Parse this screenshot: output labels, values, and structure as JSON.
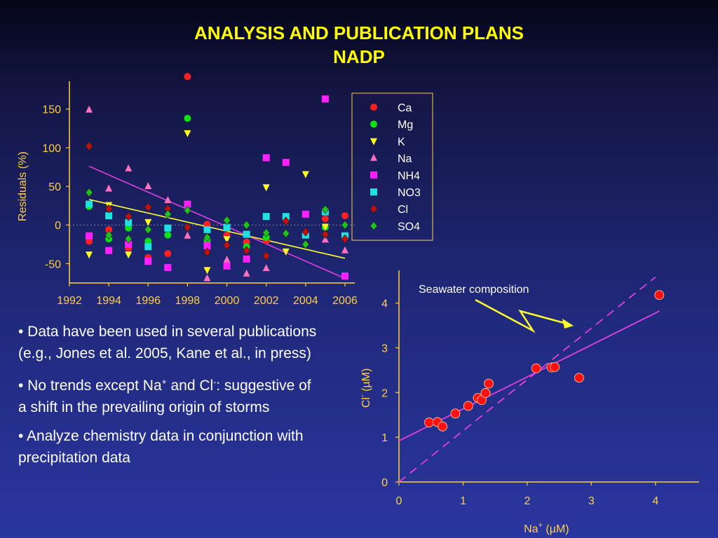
{
  "slide": {
    "title_line1": "ANALYSIS AND PUBLICATION PLANS",
    "title_line2": "NADP",
    "bullets": [
      {
        "text": "•  Data have been used in several publications (e.g., Jones et al. 2005, Kane et al., in press)"
      },
      {
        "pre": "•  No trends except Na",
        "sup1": "+",
        "mid": " and Cl",
        "sup2": "-",
        "post": ": suggestive of a shift in the prevailing origin of storms"
      },
      {
        "text": "•  Analyze chemistry data in conjunction with precipitation data"
      }
    ]
  },
  "colors": {
    "title": "#ffff00",
    "axis_text": "#ffd040",
    "axis_line": "#ffd040",
    "trend_na": "#e040e0",
    "trend_cl": "#ffff30",
    "point_red": "#ff1010"
  },
  "chart_data": [
    {
      "type": "scatter",
      "title": "",
      "xlabel": "",
      "ylabel": "Residuals (%)",
      "xlim": [
        1992,
        2006.5
      ],
      "ylim": [
        -75,
        195
      ],
      "xticks": [
        1992,
        1994,
        1996,
        1998,
        2000,
        2002,
        2004,
        2006
      ],
      "yticks": [
        -50,
        0,
        50,
        100,
        150
      ],
      "legend_position": "top-right",
      "series": [
        {
          "name": "Ca",
          "marker": "circle",
          "color": "#ff2020",
          "x": [
            1993,
            1994,
            1995,
            1996,
            1997,
            1998,
            1999,
            2000,
            2001,
            2002,
            2005,
            2006
          ],
          "y": [
            -21,
            -6,
            -30,
            -42,
            -37,
            192,
            1,
            -13,
            -22,
            -20,
            8,
            12
          ]
        },
        {
          "name": "Mg",
          "marker": "circle",
          "color": "#10e010",
          "x": [
            1993,
            1994,
            1995,
            1996,
            1997,
            1998,
            1999,
            2000,
            2001,
            2002,
            2005
          ],
          "y": [
            24,
            -18,
            -4,
            -21,
            -13,
            138,
            -20,
            -4,
            -28,
            -16,
            -3
          ]
        },
        {
          "name": "K",
          "marker": "tri-down",
          "color": "#ffff20",
          "x": [
            1993,
            1994,
            1995,
            1996,
            1998,
            1999,
            2000,
            2002,
            2003,
            2004,
            2005
          ],
          "y": [
            -38,
            26,
            -38,
            4,
            119,
            -58,
            -18,
            49,
            -34,
            66,
            -2
          ]
        },
        {
          "name": "Na",
          "marker": "tri-up",
          "color": "#ff70c0",
          "x": [
            1993,
            1994,
            1995,
            1996,
            1997,
            1998,
            1999,
            2000,
            2001,
            2002,
            2005,
            2006
          ],
          "y": [
            149,
            47,
            73,
            50,
            32,
            -14,
            -69,
            -45,
            -63,
            -56,
            -19,
            -33
          ]
        },
        {
          "name": "NH4",
          "marker": "square",
          "color": "#ff20ff",
          "x": [
            1993,
            1994,
            1995,
            1996,
            1997,
            1998,
            1999,
            2000,
            2001,
            2002,
            2003,
            2004,
            2005,
            2006
          ],
          "y": [
            -14,
            -33,
            -25,
            -47,
            -55,
            27,
            -27,
            -53,
            -44,
            87,
            81,
            14,
            163,
            -66
          ]
        },
        {
          "name": "NO3",
          "marker": "square",
          "color": "#20e0e0",
          "x": [
            1993,
            1994,
            1995,
            1996,
            1997,
            1999,
            2000,
            2001,
            2002,
            2003,
            2004,
            2005,
            2006
          ],
          "y": [
            27,
            12,
            3,
            -28,
            -4,
            -6,
            -3,
            -12,
            11,
            11,
            -13,
            17,
            -14
          ]
        },
        {
          "name": "Cl",
          "marker": "diamond",
          "color": "#c01010",
          "x": [
            1993,
            1994,
            1995,
            1996,
            1997,
            1998,
            1999,
            2000,
            2001,
            2002,
            2003,
            2004,
            2005,
            2006
          ],
          "y": [
            102,
            21,
            11,
            23,
            21,
            -3,
            -35,
            -26,
            -33,
            -40,
            5,
            -9,
            -12,
            -18
          ]
        },
        {
          "name": "SO4",
          "marker": "diamond",
          "color": "#20c020",
          "x": [
            1993,
            1994,
            1995,
            1996,
            1997,
            1998,
            1999,
            2000,
            2001,
            2002,
            2003,
            2004,
            2005,
            2006
          ],
          "y": [
            42,
            -13,
            -18,
            -6,
            14,
            19,
            -16,
            6,
            0,
            -10,
            -11,
            -25,
            20,
            0
          ]
        }
      ],
      "trend_lines": [
        {
          "series": "Na",
          "color": "#e040e0",
          "x": [
            1993,
            2006
          ],
          "y": [
            76,
            -69
          ]
        },
        {
          "series": "Cl",
          "color": "#ffff30",
          "x": [
            1993,
            2006
          ],
          "y": [
            33,
            -43
          ]
        }
      ]
    },
    {
      "type": "scatter",
      "title": "",
      "xlabel_prefix": "Na",
      "xlabel_sup": "+",
      "xlabel_suffix": " (µM)",
      "ylabel_prefix": "Cl",
      "ylabel_sup": "-",
      "ylabel_suffix": "  (µM)",
      "xlim": [
        0,
        4.6
      ],
      "ylim": [
        0,
        4.6
      ],
      "xticks": [
        0,
        1,
        2,
        3,
        4
      ],
      "yticks": [
        0,
        1,
        2,
        3,
        4
      ],
      "annotation": "Seawater composition",
      "points": {
        "color": "#ff1010",
        "x": [
          0.47,
          0.6,
          0.68,
          0.88,
          1.08,
          1.23,
          1.29,
          1.35,
          1.4,
          2.14,
          2.38,
          2.43,
          2.81,
          4.06
        ],
        "y": [
          1.33,
          1.34,
          1.24,
          1.53,
          1.7,
          1.88,
          1.83,
          1.99,
          2.2,
          2.54,
          2.56,
          2.57,
          2.33,
          4.18
        ]
      },
      "fit_line": {
        "color": "#e040e0",
        "x": [
          0,
          4.06
        ],
        "y": [
          0.92,
          3.82
        ]
      },
      "seawater_line": {
        "color": "#e040e0",
        "style": "dashed",
        "x": [
          0,
          4.0
        ],
        "y": [
          0,
          4.58
        ]
      }
    }
  ]
}
